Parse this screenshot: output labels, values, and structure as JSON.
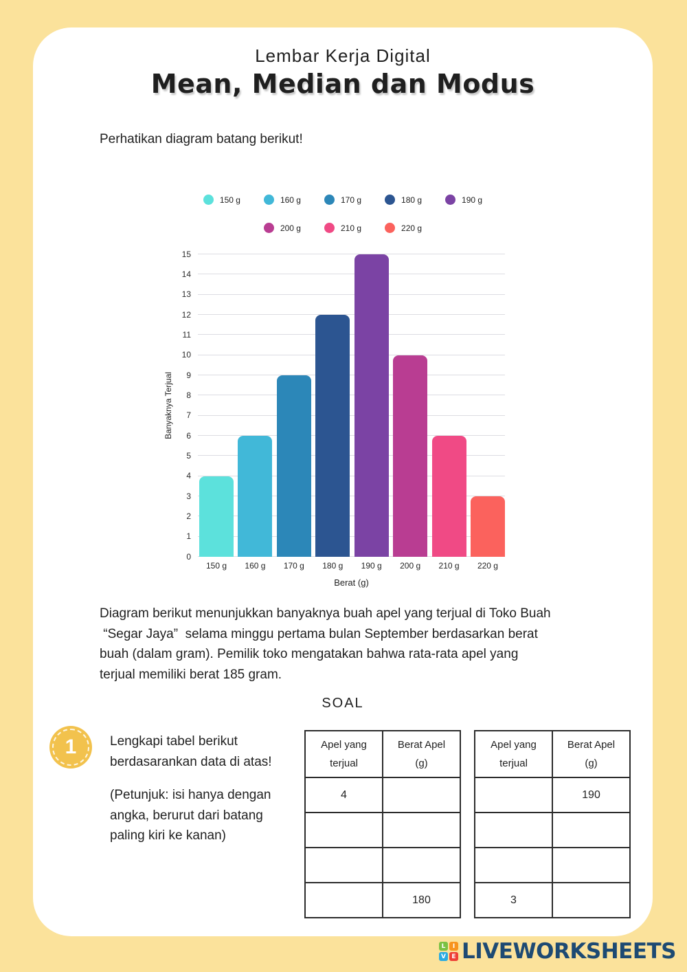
{
  "header": {
    "subtitle": "Lembar Kerja Digital",
    "title": "Mean, Median dan Modus"
  },
  "intro": "Perhatikan diagram batang berikut!",
  "chart_data": {
    "type": "bar",
    "categories": [
      "150 g",
      "160 g",
      "170 g",
      "180 g",
      "190 g",
      "200 g",
      "210 g",
      "220 g"
    ],
    "values": [
      4,
      6,
      9,
      12,
      15,
      10,
      6,
      3
    ],
    "bar_colors": [
      "#5CE1DC",
      "#41B8D8",
      "#2C87B8",
      "#2C5591",
      "#7B43A4",
      "#B93D92",
      "#F04A85",
      "#FB625D"
    ],
    "xlabel": "Berat (g)",
    "ylabel": "Banyaknya Terjual",
    "ylim": [
      0,
      15
    ],
    "ytick_step": 1,
    "grid": true,
    "legend_position": "top",
    "legend_row_split": [
      5,
      3
    ]
  },
  "description_lines": [
    "Diagram berikut menunjukkan banyaknya buah apel yang terjual di Toko Buah",
    " “Segar Jaya”  selama minggu pertama bulan September berdasarkan berat",
    "buah (dalam gram). Pemilik toko mengatakan bahwa rata-rata apel yang",
    "terjual memiliki berat 185 gram."
  ],
  "soal": {
    "heading": "SOAL",
    "number": "1",
    "instruction_lines": [
      "Lengkapi tabel berikut",
      "berdasarankan data di atas!"
    ],
    "hint_lines": [
      "(Petunjuk: isi hanya dengan",
      "angka, berurut dari batang",
      "paling kiri ke kanan)"
    ]
  },
  "tables": [
    {
      "headers": [
        [
          "Apel yang",
          "terjual"
        ],
        [
          "Berat Apel",
          "(g)"
        ]
      ],
      "rows": [
        [
          "4",
          ""
        ],
        [
          "",
          ""
        ],
        [
          "",
          ""
        ],
        [
          "",
          "180"
        ]
      ]
    },
    {
      "headers": [
        [
          "Apel yang",
          "terjual"
        ],
        [
          "Berat Apel",
          "(g)"
        ]
      ],
      "rows": [
        [
          "",
          "190"
        ],
        [
          "",
          ""
        ],
        [
          "",
          ""
        ],
        [
          "3",
          ""
        ]
      ]
    }
  ],
  "footer": {
    "brand": "LIVEWORKSHEETS",
    "brand_color": "#1D4A73",
    "logo_letters": [
      {
        "letter": "L",
        "color": "#7AC143"
      },
      {
        "letter": "I",
        "color": "#F7941E"
      },
      {
        "letter": "V",
        "color": "#29ABE2"
      },
      {
        "letter": "E",
        "color": "#EE4036"
      }
    ]
  },
  "colors": {
    "page_bg": "#FBE29B",
    "card_bg": "#FFFFFF",
    "badge": "#F2C24D",
    "text": "#1F1F1F",
    "gridline": "#DCDCE2",
    "table_border": "#2B2B2B"
  }
}
